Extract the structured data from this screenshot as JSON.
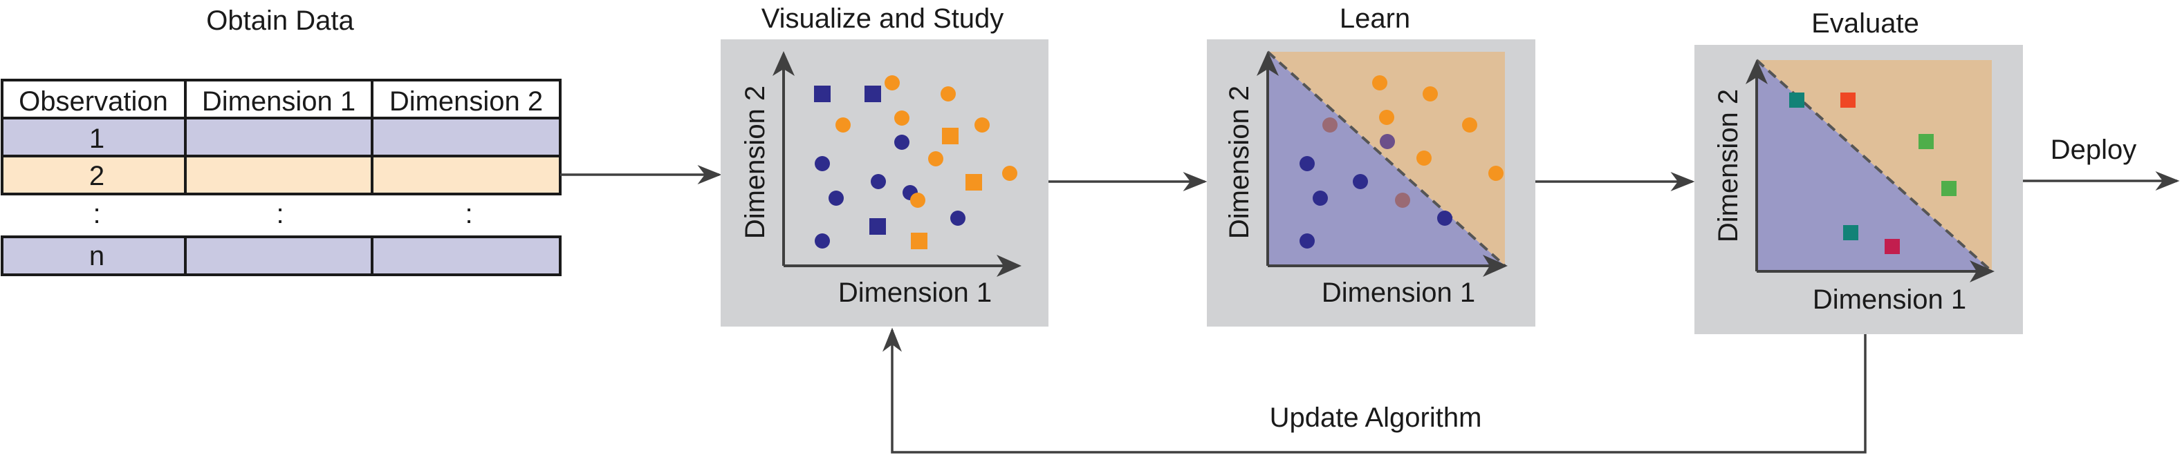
{
  "stages": {
    "obtain": "Obtain Data",
    "visualize": "Visualize and Study",
    "learn": "Learn",
    "evaluate": "Evaluate"
  },
  "table": {
    "headers": [
      "Observation",
      "Dimension 1",
      "Dimension 2"
    ],
    "rows": [
      {
        "label": "1",
        "color": "#c9c9e2"
      },
      {
        "label": "2",
        "color": "#fde6c8"
      },
      {
        "label": ":",
        "dim1": ":",
        "dim2": ":"
      },
      {
        "label": "n",
        "color": "#c9c9e2"
      }
    ]
  },
  "axes": {
    "x": "Dimension 1",
    "y": "Dimension 2"
  },
  "flow": {
    "deploy": "Deploy",
    "update": "Update Algorithm"
  },
  "colors": {
    "class_a": "#2e2c8c",
    "class_b": "#f5941f",
    "region_a": "#9a99c6",
    "region_b": "#e0bf98",
    "panel": "#d1d2d4",
    "teal": "#128277",
    "red": "#ef4724",
    "green": "#4fae4a",
    "crimson": "#c21e4e"
  }
}
